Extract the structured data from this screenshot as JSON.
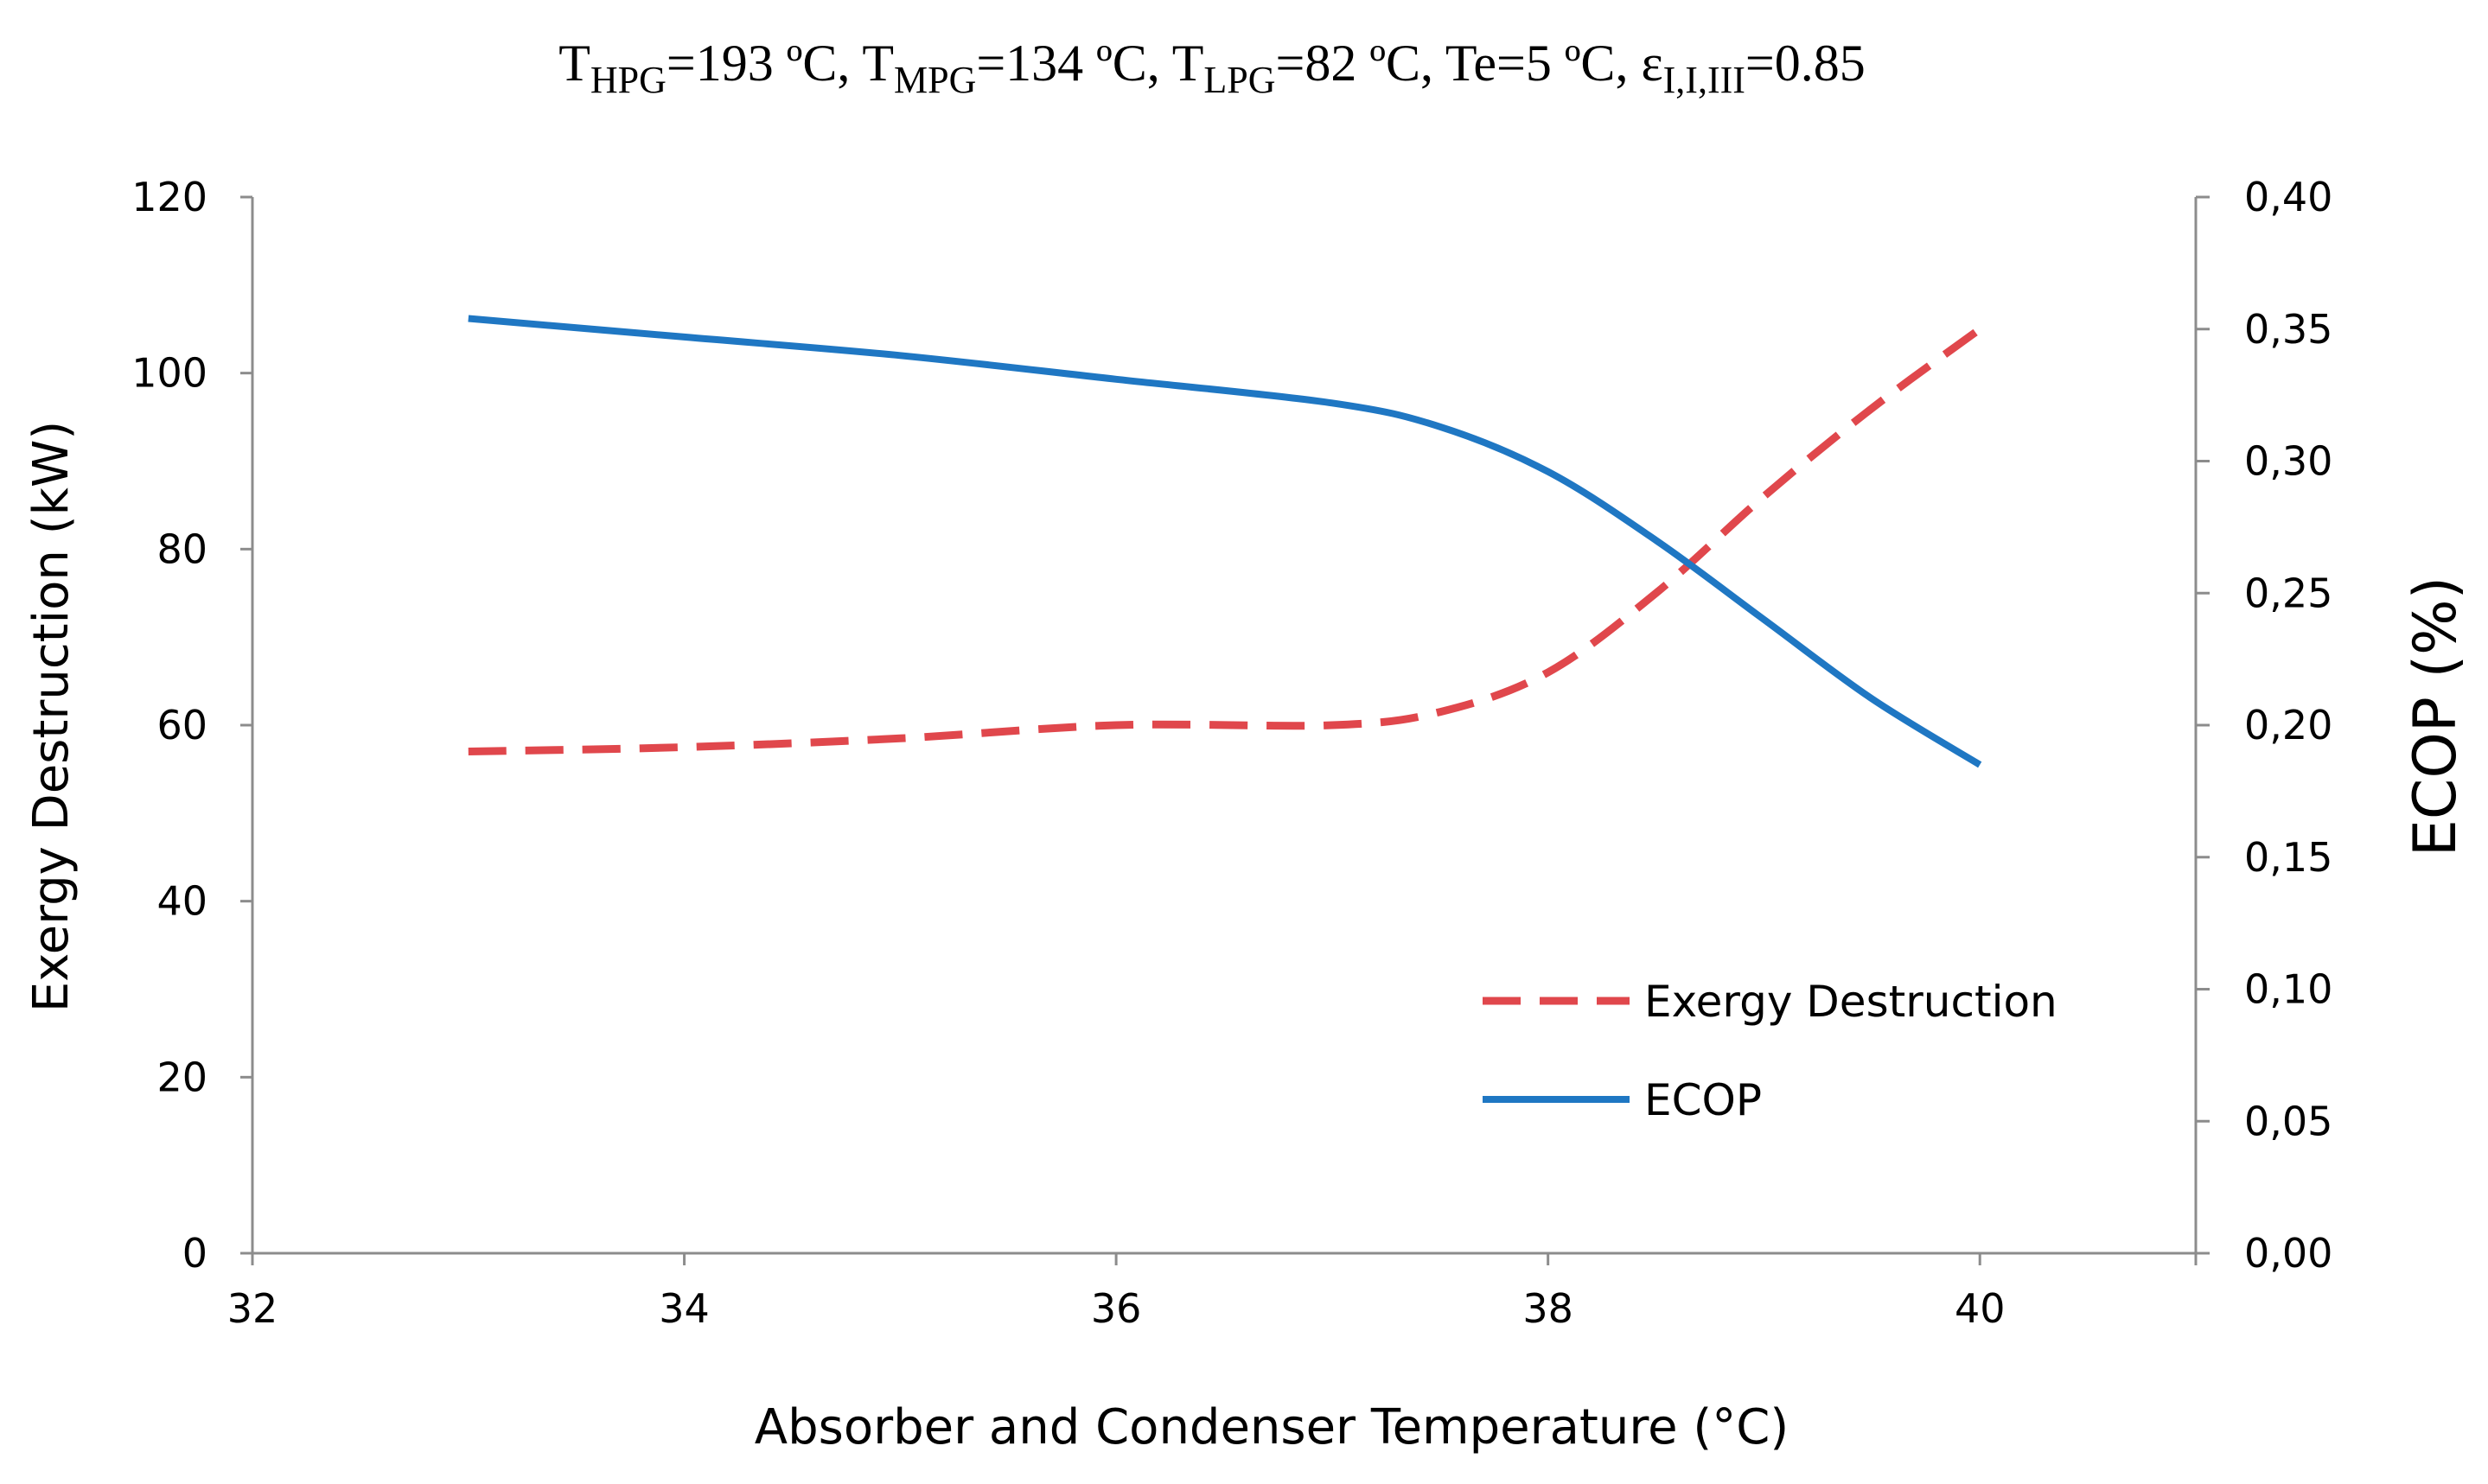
{
  "chart_data": {
    "type": "line",
    "title": {
      "T_base": "T",
      "hpg_sub": "HPG",
      "hpg_val": "=193 ºC, ",
      "mpg_sub": "MPG",
      "mpg_val": "=134 ºC, ",
      "lpg_sub": "LPG",
      "lpg_val": "=82 ºC, Te=5 ºC, ",
      "eps_base": "ε",
      "eps_sub": "I,I,III",
      "eps_val": "=0.85"
    },
    "xlabel": "Absorber and Condenser Temperature (°C)",
    "ylabel": "Exergy Destruction (kW)",
    "y2label": "ECOP (%)",
    "xlim": [
      32,
      41
    ],
    "ylim": [
      0,
      120
    ],
    "y2lim": [
      0,
      0.4
    ],
    "x_ticks": [
      32,
      34,
      36,
      38,
      40
    ],
    "x_tick_labels": [
      "32",
      "34",
      "36",
      "38",
      "40"
    ],
    "y_ticks": [
      0,
      20,
      40,
      60,
      80,
      100,
      120
    ],
    "y_tick_labels": [
      "0",
      "20",
      "40",
      "60",
      "80",
      "100",
      "120"
    ],
    "y2_ticks": [
      0,
      0.05,
      0.1,
      0.15,
      0.2,
      0.25,
      0.3,
      0.35,
      0.4
    ],
    "y2_tick_labels": [
      "0,00",
      "0,05",
      "0,10",
      "0,15",
      "0,20",
      "0,25",
      "0,30",
      "0,35",
      "0,40"
    ],
    "legend_position": "lower-right",
    "series": [
      {
        "name": "Exergy Destruction",
        "axis": "left",
        "style": "dashed",
        "color": "#E0474C",
        "x": [
          33,
          34,
          35,
          36,
          37,
          37.5,
          38,
          38.5,
          39,
          39.5,
          40
        ],
        "values": [
          57,
          57.5,
          58.5,
          60,
          60,
          61.5,
          66,
          75,
          86,
          96,
          105
        ]
      },
      {
        "name": "ECOP",
        "axis": "right",
        "style": "solid",
        "color": "#1F77C3",
        "x": [
          33,
          34,
          35,
          36,
          37,
          37.5,
          38,
          38.5,
          39,
          39.5,
          40
        ],
        "values": [
          0.354,
          0.347,
          0.34,
          0.331,
          0.322,
          0.313,
          0.296,
          0.27,
          0.24,
          0.21,
          0.185
        ]
      }
    ]
  }
}
